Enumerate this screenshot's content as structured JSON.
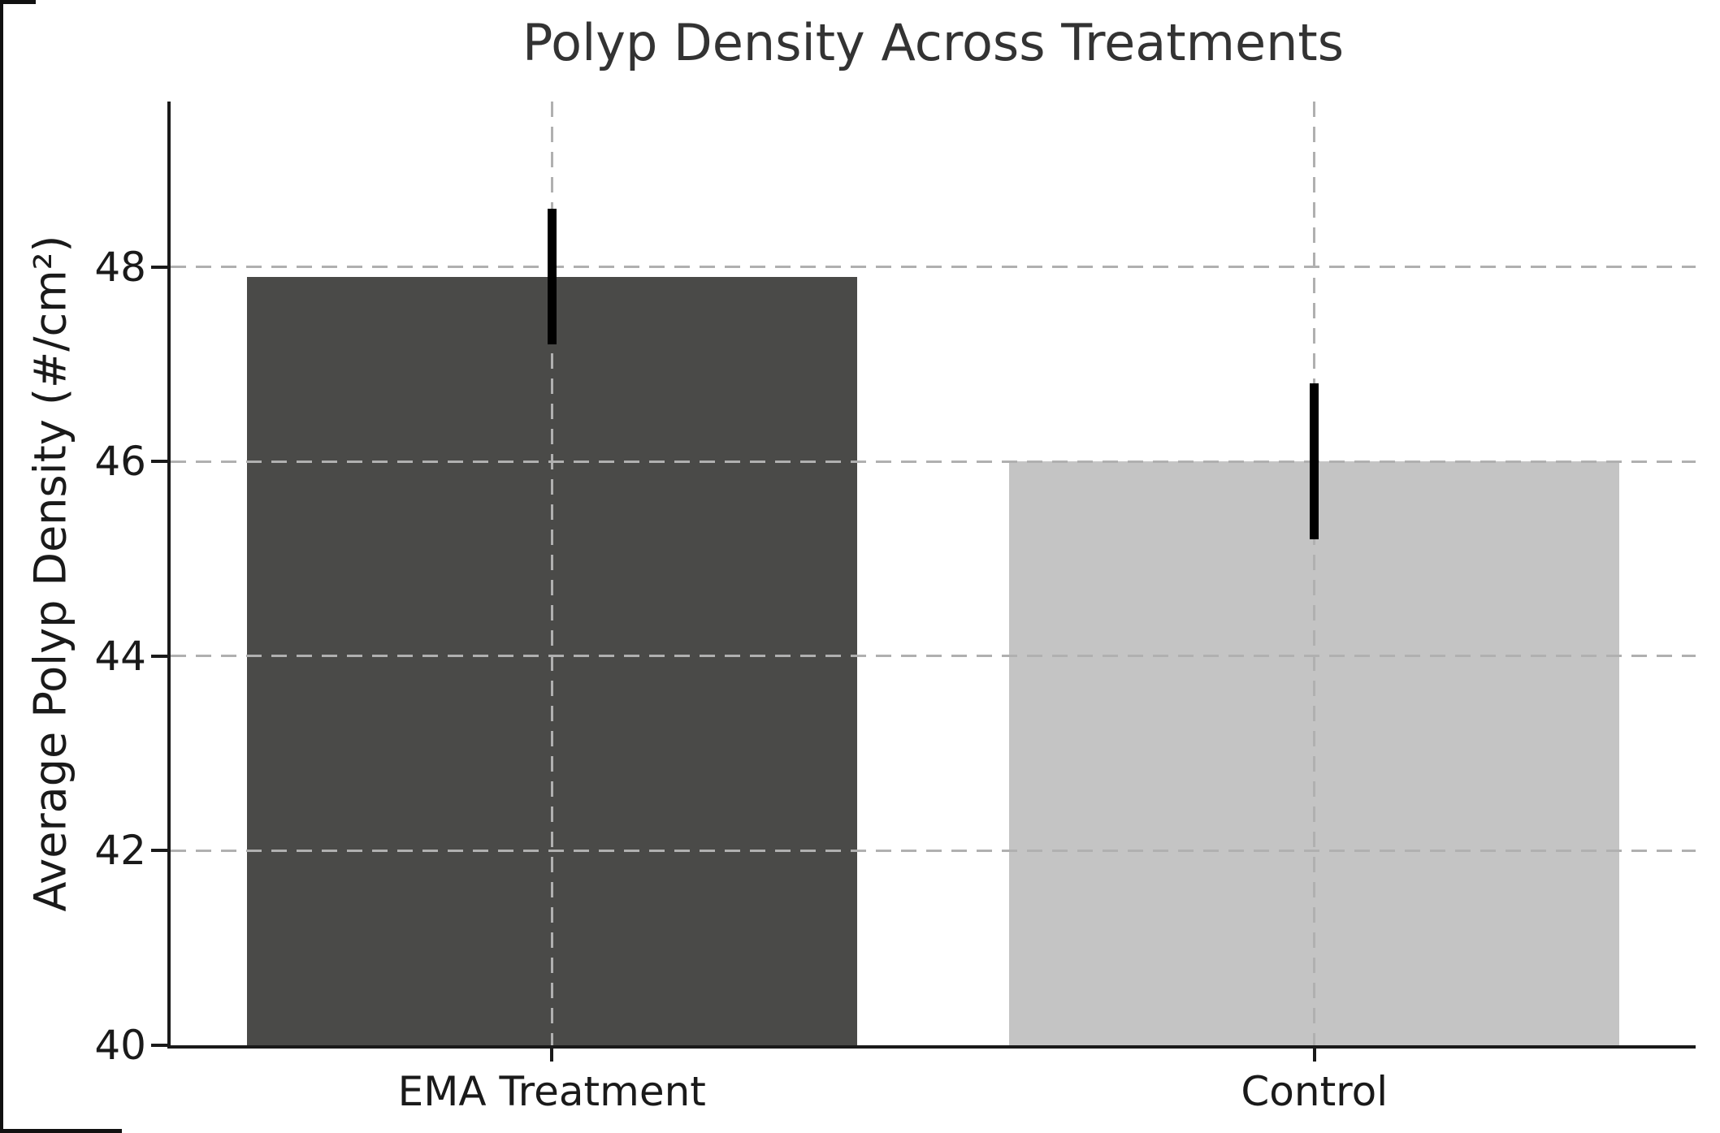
{
  "window": {
    "background": "#ffffff",
    "edge_artifact_color": "#111111"
  },
  "chart_data": {
    "type": "bar",
    "title": "Polyp Density Across Treatments",
    "ylabel": "Average Polyp Density (#/cm²)",
    "xlabel": "",
    "categories": [
      "EMA Treatment",
      "Control"
    ],
    "values": [
      47.9,
      46.0
    ],
    "errors": [
      0.7,
      0.8
    ],
    "ylim": [
      40,
      49.7
    ],
    "yticks": [
      40,
      42,
      44,
      46,
      48
    ],
    "grid": "dashed horizontal at yticks and dashed vertical at bar centers, drawn over bars",
    "legend": "none",
    "bar_colors": [
      "#4a4a48",
      "#c4c4c4"
    ],
    "error_bar_color": "#000000",
    "grid_color": "#b0b0b0",
    "axis_color": "#1a1a1a",
    "title_color": "#333333",
    "tick_label_color": "#1a1a1a"
  }
}
